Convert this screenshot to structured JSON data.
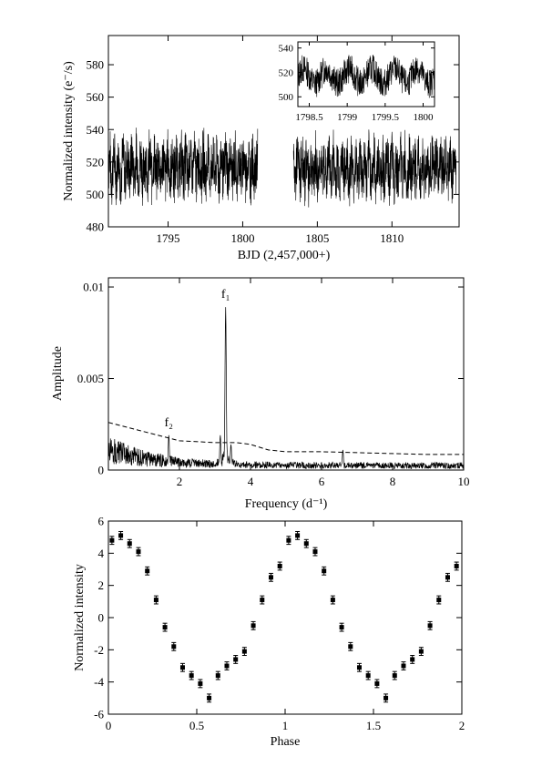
{
  "chart_data": [
    {
      "type": "line",
      "xlabel": "BJD (2,457,000+)",
      "ylabel": "Normalized intensity (e⁻/s)",
      "xlim": [
        1791,
        1814.5
      ],
      "ylim": [
        480,
        598
      ],
      "xticks": [
        1795,
        1800,
        1805,
        1810
      ],
      "yticks": [
        480,
        500,
        520,
        540,
        560,
        580
      ],
      "segments": [
        {
          "x_start": 1791.0,
          "x_end": 1801.0,
          "mean": 517,
          "min": 488,
          "max": 543
        },
        {
          "x_start": 1803.4,
          "x_end": 1814.3,
          "mean": 516,
          "min": 486,
          "max": 540
        }
      ],
      "inset": {
        "type": "line",
        "xlim": [
          1798.35,
          1800.15
        ],
        "ylim": [
          492,
          545
        ],
        "xticks": [
          1798.5,
          1799,
          1799.5,
          1800
        ],
        "yticks": [
          500,
          520,
          540
        ],
        "period_days": 0.3,
        "mean": 517,
        "semi_amplitude": 6,
        "min": 495,
        "max": 538
      }
    },
    {
      "type": "line",
      "xlabel": "Frequency (d⁻¹)",
      "ylabel": "Amplitude",
      "xlim": [
        0,
        10
      ],
      "ylim": [
        0,
        0.0105
      ],
      "xticks": [
        2,
        4,
        6,
        8,
        10
      ],
      "yticks": [
        0,
        0.005,
        0.01
      ],
      "ytick_labels": [
        "0",
        "0.005",
        "0.01"
      ],
      "peaks": [
        {
          "label": "f₁",
          "frequency": 3.3,
          "amplitude": 0.0089
        },
        {
          "label": "f₂",
          "frequency": 1.7,
          "amplitude": 0.0019
        }
      ],
      "minor_peaks": [
        {
          "frequency": 3.15,
          "amplitude": 0.0019
        },
        {
          "frequency": 3.45,
          "amplitude": 0.0014
        },
        {
          "frequency": 6.6,
          "amplitude": 0.0011
        }
      ],
      "noise_level_dashed": {
        "x": [
          0,
          1,
          2,
          3,
          3.6,
          4,
          4.5,
          5,
          6,
          7,
          8,
          9,
          10
        ],
        "y": [
          0.0026,
          0.0021,
          0.0016,
          0.0015,
          0.0015,
          0.0014,
          0.0011,
          0.001,
          0.001,
          0.00095,
          0.0009,
          0.00085,
          0.00085
        ]
      }
    },
    {
      "type": "scatter",
      "xlabel": "Phase",
      "ylabel": "Normalized intensity",
      "xlim": [
        0,
        2
      ],
      "ylim": [
        -6,
        6
      ],
      "xticks": [
        0,
        0.5,
        1,
        1.5,
        2
      ],
      "xtick_labels": [
        "0",
        "0.5",
        "1",
        "1.5",
        "2"
      ],
      "yticks": [
        -6,
        -4,
        -2,
        0,
        2,
        4,
        6
      ],
      "error_bar": 0.25,
      "phase": [
        0.02,
        0.07,
        0.12,
        0.17,
        0.22,
        0.27,
        0.32,
        0.37,
        0.42,
        0.47,
        0.52,
        0.57,
        0.62,
        0.67,
        0.72,
        0.77,
        0.82,
        0.87,
        0.92,
        0.97
      ],
      "intensity": [
        4.8,
        5.1,
        4.6,
        4.1,
        2.9,
        1.1,
        -0.6,
        -1.8,
        -3.1,
        -3.6,
        -4.1,
        -5.0,
        -3.6,
        -3.0,
        -2.6,
        -2.1,
        -0.5,
        1.1,
        2.5,
        3.2
      ]
    }
  ]
}
